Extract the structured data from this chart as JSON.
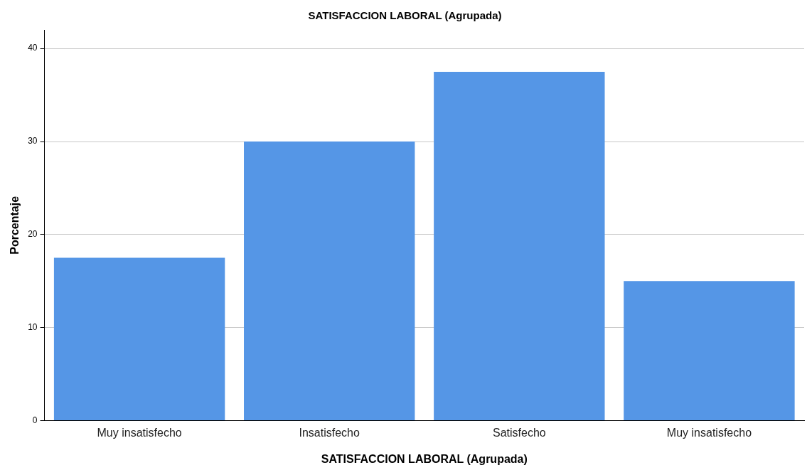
{
  "chart_data": {
    "type": "bar",
    "title": "SATISFACCION LABORAL (Agrupada)",
    "xlabel": "SATISFACCION LABORAL (Agrupada)",
    "ylabel": "Porcentaje",
    "categories": [
      "Muy insatisfecho",
      "Insatisfecho",
      "Satisfecho",
      "Muy insatisfecho"
    ],
    "values": [
      17.5,
      30,
      37.5,
      15
    ],
    "color": "#5596e6",
    "ylim": [
      0,
      42
    ],
    "yticks": [
      0,
      10,
      20,
      30,
      40
    ],
    "grid": "y",
    "legend": false
  }
}
